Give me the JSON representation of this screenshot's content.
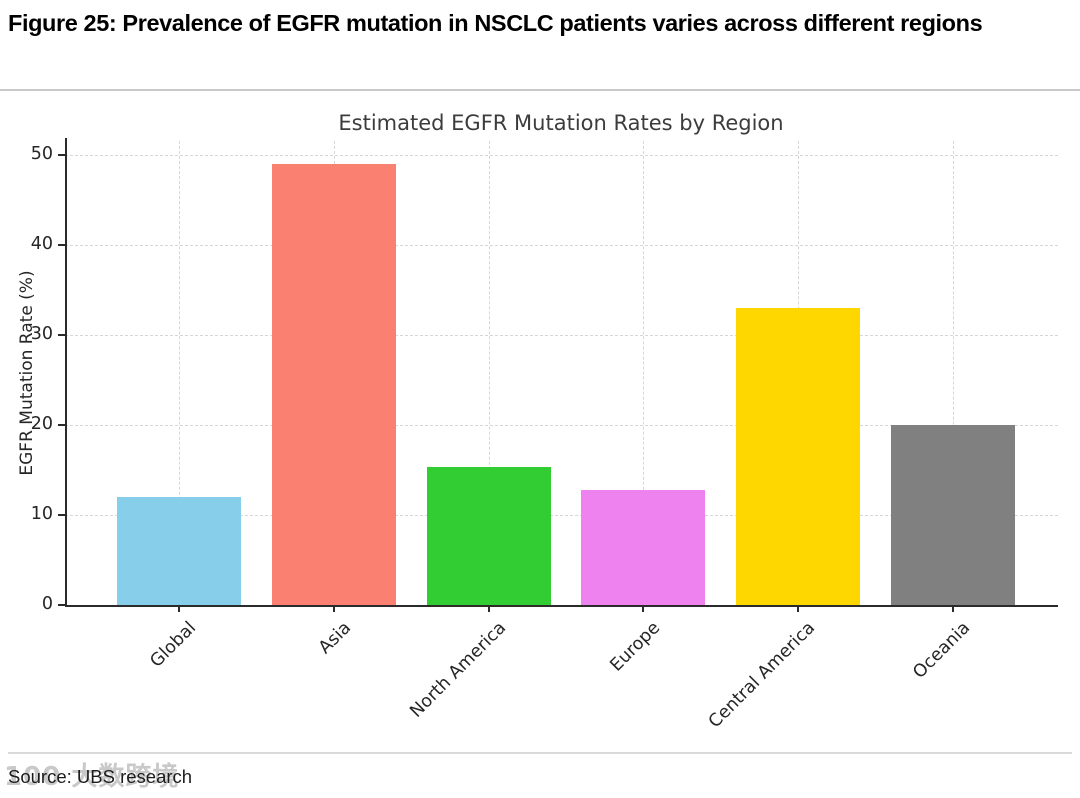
{
  "figure": {
    "heading": "Figure 25: Prevalence of EGFR mutation in NSCLC patients varies across different regions",
    "source": "Source: UBS research",
    "watermark": "100 大数跨境"
  },
  "chart_data": {
    "type": "bar",
    "title": "Estimated EGFR Mutation Rates by Region",
    "xlabel": "",
    "ylabel": "EGFR Mutation Rate (%)",
    "categories": [
      "Global",
      "Asia",
      "North America",
      "Europe",
      "Central America",
      "Oceania"
    ],
    "values": [
      12,
      49,
      15.3,
      12.8,
      33,
      20
    ],
    "bar_colors": [
      "#87CEEB",
      "#FA8072",
      "#32CD32",
      "#EE82EE",
      "#FFD700",
      "#808080"
    ],
    "yticks": [
      0,
      10,
      20,
      30,
      40,
      50
    ],
    "ylim": [
      0,
      51.5
    ],
    "grid": "dashed both axes",
    "legend_position": "none",
    "colors": {
      "grid": "#d6d6d6",
      "spine": "#2b2b2b",
      "chart_title": "#3c3c3c",
      "tick_text": "#262626"
    }
  }
}
